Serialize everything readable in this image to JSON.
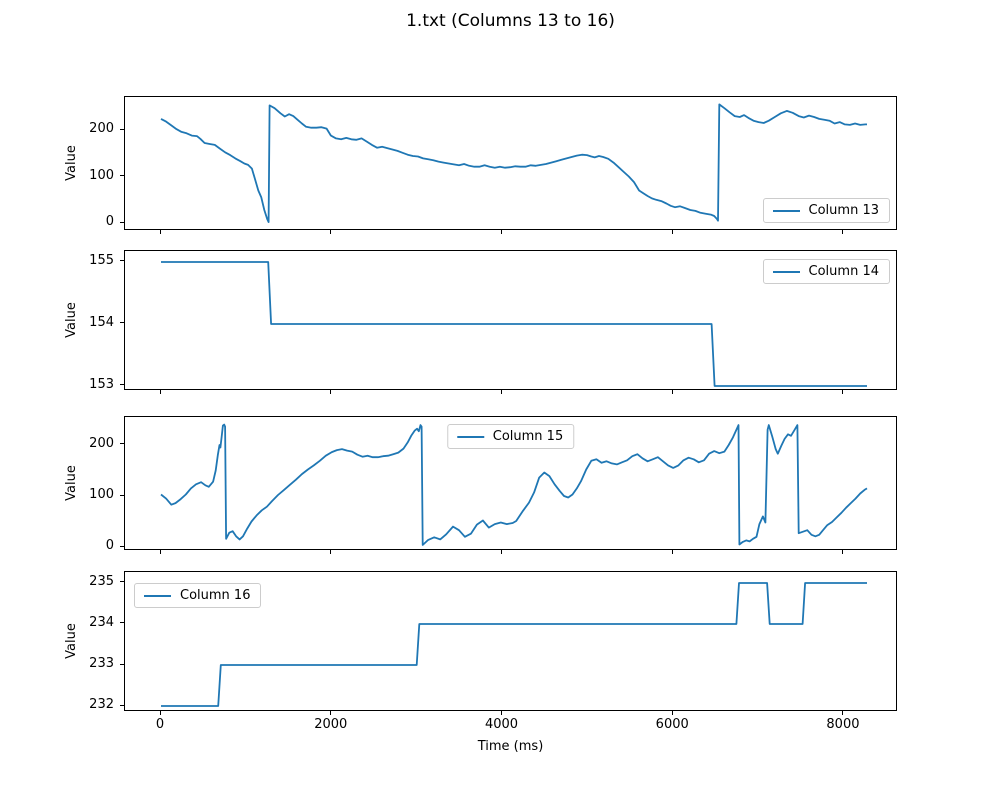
{
  "figure": {
    "title": "1.txt (Columns 13 to 16)",
    "xlabel": "Time (ms)"
  },
  "chart_data": [
    {
      "type": "line",
      "ylabel": "Value",
      "legend_position": "lower right",
      "line_color": "#1f77b4",
      "xlim": [
        -422,
        8633
      ],
      "ylim": [
        -17.2,
        271.0
      ],
      "xticks": [
        0,
        2000,
        4000,
        6000,
        8000
      ],
      "yticks": [
        0,
        100,
        200
      ],
      "series": [
        {
          "name": "Column 13",
          "x": [
            0,
            60,
            120,
            180,
            240,
            300,
            360,
            420,
            460,
            510,
            570,
            630,
            690,
            750,
            810,
            870,
            930,
            975,
            1020,
            1065,
            1100,
            1140,
            1175,
            1210,
            1245,
            1260,
            1272,
            1330,
            1400,
            1450,
            1500,
            1550,
            1600,
            1650,
            1700,
            1760,
            1820,
            1880,
            1940,
            1990,
            2050,
            2110,
            2170,
            2230,
            2290,
            2350,
            2410,
            2470,
            2530,
            2590,
            2650,
            2710,
            2770,
            2830,
            2890,
            2950,
            3010,
            3070,
            3130,
            3190,
            3250,
            3310,
            3370,
            3430,
            3490,
            3550,
            3610,
            3670,
            3730,
            3790,
            3850,
            3910,
            3970,
            4030,
            4090,
            4150,
            4210,
            4270,
            4330,
            4390,
            4450,
            4510,
            4570,
            4630,
            4690,
            4750,
            4810,
            4870,
            4930,
            4990,
            5040,
            5080,
            5130,
            5180,
            5240,
            5300,
            5360,
            5420,
            5480,
            5540,
            5600,
            5650,
            5700,
            5750,
            5800,
            5860,
            5920,
            5970,
            6020,
            6080,
            6140,
            6200,
            6260,
            6320,
            6380,
            6440,
            6480,
            6510,
            6525,
            6540,
            6600,
            6660,
            6720,
            6780,
            6830,
            6880,
            6940,
            7000,
            7060,
            7120,
            7190,
            7260,
            7330,
            7400,
            7470,
            7530,
            7590,
            7650,
            7710,
            7770,
            7830,
            7890,
            7950,
            8010,
            8070,
            8130,
            8190,
            8250,
            8270
          ],
          "y": [
            224,
            218,
            210,
            202,
            196,
            193,
            188,
            187,
            181,
            172,
            170,
            168,
            160,
            152,
            146,
            139,
            133,
            128,
            125,
            117,
            95,
            70,
            55,
            28,
            8,
            2,
            253,
            247,
            236,
            229,
            234,
            230,
            222,
            214,
            207,
            205,
            205,
            206,
            203,
            188,
            182,
            180,
            183,
            180,
            179,
            182,
            175,
            168,
            162,
            164,
            161,
            158,
            155,
            151,
            147,
            144,
            143,
            139,
            137,
            135,
            132,
            130,
            128,
            126,
            124,
            127,
            123,
            121,
            121,
            124,
            121,
            119,
            121,
            119,
            120,
            122,
            121,
            121,
            124,
            123,
            125,
            127,
            130,
            133,
            136,
            139,
            142,
            145,
            147,
            146,
            143,
            141,
            144,
            142,
            138,
            130,
            120,
            110,
            100,
            88,
            70,
            64,
            58,
            53,
            50,
            47,
            42,
            37,
            34,
            36,
            32,
            28,
            26,
            22,
            20,
            18,
            15,
            9,
            5,
            255,
            247,
            238,
            230,
            228,
            232,
            226,
            220,
            217,
            215,
            220,
            228,
            236,
            241,
            237,
            230,
            227,
            231,
            228,
            224,
            222,
            220,
            214,
            217,
            212,
            211,
            214,
            211,
            212,
            212
          ]
        }
      ]
    },
    {
      "type": "line",
      "ylabel": "Value",
      "legend_position": "upper right",
      "line_color": "#1f77b4",
      "xlim": [
        -422,
        8633
      ],
      "ylim": [
        152.919,
        155.177
      ],
      "xticks": [
        0,
        2000,
        4000,
        6000,
        8000
      ],
      "yticks": [
        153,
        154,
        155
      ],
      "series": [
        {
          "name": "Column 14",
          "x": [
            0,
            1255,
            1290,
            6450,
            6485,
            8270
          ],
          "y": [
            155,
            155,
            154,
            154,
            153,
            153
          ]
        }
      ]
    },
    {
      "type": "line",
      "ylabel": "Value",
      "legend_position": "upper center",
      "line_color": "#1f77b4",
      "xlim": [
        -422,
        8633
      ],
      "ylim": [
        -7.84,
        254.9
      ],
      "xticks": [
        0,
        2000,
        4000,
        6000,
        8000
      ],
      "yticks": [
        0,
        100,
        200
      ],
      "series": [
        {
          "name": "Column 15",
          "x": [
            0,
            60,
            120,
            170,
            230,
            290,
            350,
            410,
            470,
            520,
            560,
            610,
            640,
            665,
            685,
            695,
            710,
            725,
            740,
            750,
            762,
            800,
            840,
            880,
            920,
            960,
            1010,
            1060,
            1120,
            1180,
            1240,
            1300,
            1370,
            1440,
            1510,
            1580,
            1650,
            1720,
            1790,
            1860,
            1930,
            2000,
            2060,
            2120,
            2180,
            2240,
            2300,
            2360,
            2420,
            2480,
            2540,
            2600,
            2660,
            2720,
            2780,
            2840,
            2890,
            2930,
            2970,
            3000,
            3020,
            3040,
            3052,
            3065,
            3130,
            3200,
            3270,
            3340,
            3420,
            3490,
            3560,
            3630,
            3700,
            3770,
            3840,
            3910,
            3980,
            4050,
            4120,
            4160,
            4240,
            4310,
            4370,
            4430,
            4490,
            4550,
            4610,
            4670,
            4720,
            4770,
            4820,
            4870,
            4920,
            4980,
            5040,
            5100,
            5160,
            5220,
            5280,
            5340,
            5400,
            5460,
            5520,
            5580,
            5640,
            5700,
            5760,
            5820,
            5880,
            5940,
            6000,
            6060,
            6120,
            6180,
            6240,
            6300,
            6360,
            6420,
            6480,
            6540,
            6600,
            6650,
            6700,
            6740,
            6765,
            6775,
            6815,
            6855,
            6895,
            6935,
            6975,
            7010,
            7050,
            7080,
            7105,
            7120,
            7160,
            7200,
            7225,
            7265,
            7305,
            7345,
            7380,
            7420,
            7455,
            7470,
            7520,
            7570,
            7620,
            7665,
            7710,
            7755,
            7805,
            7860,
            7915,
            7970,
            8025,
            8080,
            8135,
            8190,
            8240,
            8270
          ],
          "y": [
            103,
            95,
            83,
            86,
            94,
            103,
            115,
            123,
            127,
            121,
            118,
            128,
            150,
            180,
            200,
            195,
            215,
            238,
            240,
            236,
            16,
            28,
            31,
            21,
            15,
            21,
            36,
            50,
            62,
            72,
            79,
            90,
            102,
            112,
            122,
            132,
            143,
            152,
            160,
            169,
            179,
            186,
            190,
            192,
            189,
            187,
            181,
            177,
            179,
            176,
            176,
            178,
            179,
            182,
            185,
            193,
            205,
            218,
            228,
            232,
            227,
            239,
            236,
            4,
            14,
            19,
            15,
            25,
            40,
            33,
            20,
            26,
            44,
            52,
            38,
            45,
            48,
            45,
            47,
            51,
            71,
            87,
            107,
            136,
            146,
            139,
            123,
            110,
            100,
            97,
            103,
            115,
            129,
            152,
            169,
            172,
            165,
            168,
            164,
            162,
            166,
            170,
            178,
            182,
            174,
            168,
            172,
            176,
            168,
            160,
            155,
            160,
            170,
            175,
            172,
            166,
            170,
            183,
            188,
            184,
            187,
            200,
            215,
            230,
            239,
            5,
            10,
            13,
            11,
            16,
            20,
            45,
            60,
            48,
            230,
            239,
            216,
            192,
            183,
            198,
            212,
            221,
            218,
            229,
            239,
            27,
            30,
            33,
            24,
            21,
            24,
            33,
            43,
            49,
            58,
            67,
            77,
            86,
            95,
            105,
            112,
            115
          ]
        }
      ]
    },
    {
      "type": "line",
      "ylabel": "Value",
      "legend_position": "upper left",
      "line_color": "#1f77b4",
      "xlim": [
        -422,
        8633
      ],
      "ylim": [
        231.854,
        235.268
      ],
      "xticks": [
        0,
        2000,
        4000,
        6000,
        8000
      ],
      "yticks": [
        232,
        233,
        234,
        235
      ],
      "series": [
        {
          "name": "Column 16",
          "x": [
            0,
            670,
            700,
            2995,
            3025,
            6740,
            6770,
            7100,
            7130,
            7515,
            7545,
            8270
          ],
          "y": [
            232,
            232,
            233,
            233,
            234,
            234,
            235,
            235,
            234,
            234,
            235,
            235
          ]
        }
      ]
    }
  ]
}
